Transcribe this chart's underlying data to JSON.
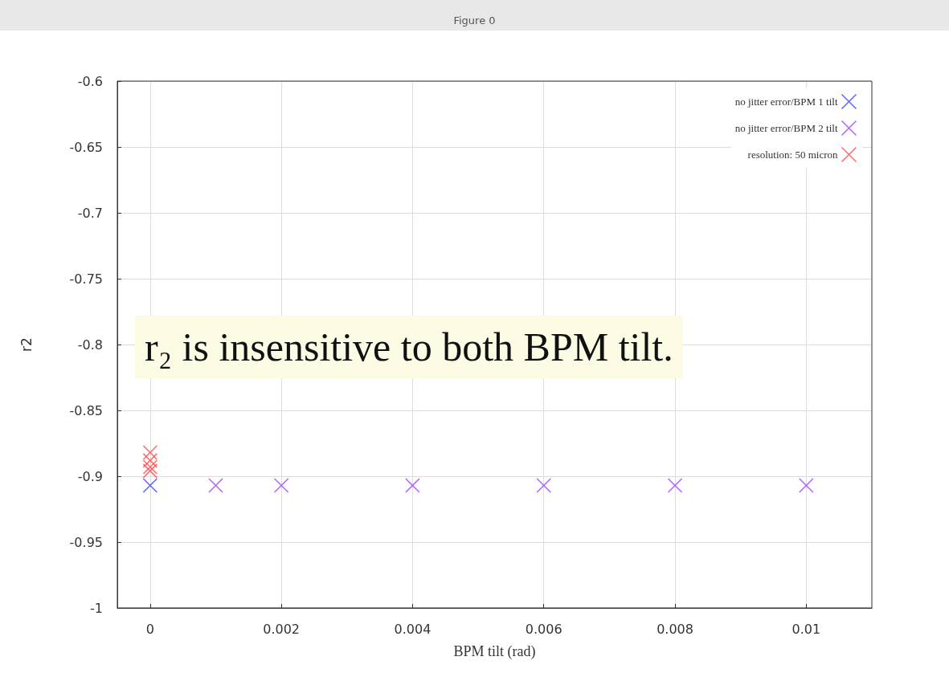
{
  "chart_data": {
    "type": "scatter",
    "title": "Figure 0",
    "xlabel": "BPM tilt (rad)",
    "ylabel": "r2",
    "annotations": [
      "r₂ is insensitive to both BPM tilt."
    ],
    "series": [
      {
        "name": "no jitter error/BPM 1 tilt",
        "color": "#4a4aff",
        "x": [
          0
        ],
        "values": [
          -0.907
        ]
      },
      {
        "name": "no jitter error/BPM 2 tilt",
        "color": "#a54cff",
        "x": [
          0.001,
          0.002,
          0.004,
          0.006,
          0.008,
          0.01
        ],
        "values": [
          -0.907,
          -0.907,
          -0.907,
          -0.907,
          -0.907,
          -0.907
        ]
      },
      {
        "name": "resolution: 50 micron",
        "color": "#ff5555",
        "x": [
          0,
          0,
          0,
          0
        ],
        "values": [
          -0.882,
          -0.888,
          -0.893,
          -0.896
        ]
      }
    ],
    "xlim": [
      -0.0005,
      0.011
    ],
    "xticks": [
      0,
      0.002,
      0.004,
      0.006,
      0.008,
      0.01
    ],
    "ylim": [
      -1,
      -0.6
    ],
    "yticks": [
      -1,
      -0.95,
      -0.9,
      -0.85,
      -0.8,
      -0.75,
      -0.7,
      -0.65,
      -0.6
    ],
    "grid": true,
    "legend": "top right",
    "marker": "cross"
  }
}
